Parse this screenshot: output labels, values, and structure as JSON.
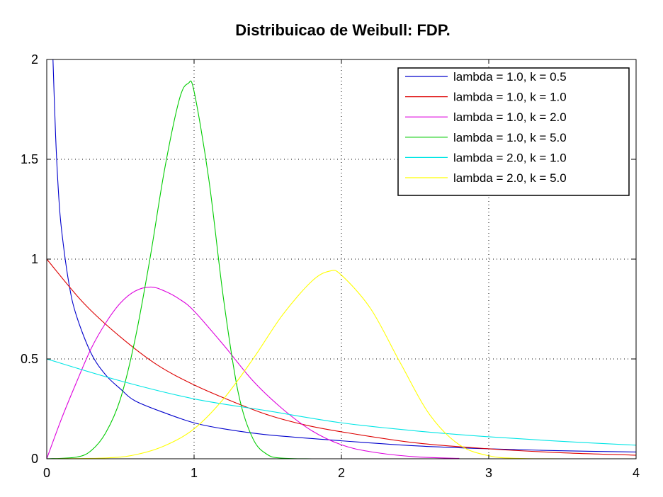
{
  "chart_data": {
    "type": "line",
    "title": "Distribuicao de Weibull: FDP.",
    "xlabel": "",
    "ylabel": "",
    "xlim": [
      0,
      4
    ],
    "ylim": [
      0,
      2
    ],
    "x_ticks": [
      0,
      1,
      2,
      3,
      4
    ],
    "y_ticks": [
      0,
      0.5,
      1,
      1.5,
      2
    ],
    "x_tick_labels": [
      "0",
      "1",
      "2",
      "3",
      "4"
    ],
    "y_tick_labels": [
      "0",
      "0.5",
      "1",
      "1.5",
      "2"
    ],
    "grid": true,
    "grid_style": "dotted",
    "legend_position": "top-right",
    "series": [
      {
        "name": "lambda = 1.0, k = 0.5",
        "color": "#0000cc",
        "x": [
          0.04,
          0.06,
          0.08,
          0.1,
          0.15,
          0.2,
          0.3,
          0.4,
          0.5,
          0.6,
          0.8,
          1.0,
          1.2,
          1.5,
          2.0,
          2.5,
          3.0,
          3.5,
          4.0
        ],
        "y": [
          2.05,
          1.62,
          1.33,
          1.15,
          0.88,
          0.72,
          0.53,
          0.42,
          0.35,
          0.29,
          0.23,
          0.18,
          0.15,
          0.12,
          0.09,
          0.065,
          0.05,
          0.04,
          0.034
        ]
      },
      {
        "name": "lambda = 1.0, k = 1.0",
        "color": "#dd0000",
        "x": [
          0,
          0.25,
          0.5,
          0.75,
          1.0,
          1.25,
          1.5,
          1.75,
          2.0,
          2.5,
          3.0,
          3.5,
          4.0
        ],
        "y": [
          1.0,
          0.78,
          0.61,
          0.47,
          0.37,
          0.29,
          0.22,
          0.17,
          0.135,
          0.08,
          0.05,
          0.03,
          0.018
        ]
      },
      {
        "name": "lambda = 1.0, k = 2.0",
        "color": "#dd00dd",
        "x": [
          0,
          0.1,
          0.2,
          0.3,
          0.4,
          0.5,
          0.6,
          0.707,
          0.8,
          0.9,
          1.0,
          1.2,
          1.4,
          1.6,
          1.8,
          2.0,
          2.2,
          2.5,
          2.8
        ],
        "y": [
          0,
          0.2,
          0.38,
          0.55,
          0.68,
          0.78,
          0.84,
          0.86,
          0.84,
          0.8,
          0.74,
          0.57,
          0.39,
          0.25,
          0.14,
          0.07,
          0.035,
          0.01,
          0.002
        ]
      },
      {
        "name": "lambda = 1.0, k = 5.0",
        "color": "#00cc00",
        "x": [
          0,
          0.2,
          0.3,
          0.4,
          0.5,
          0.6,
          0.7,
          0.8,
          0.9,
          0.96,
          1.0,
          1.1,
          1.2,
          1.3,
          1.4,
          1.5,
          1.6,
          1.8
        ],
        "y": [
          0,
          0.008,
          0.04,
          0.13,
          0.3,
          0.6,
          1.0,
          1.45,
          1.8,
          1.88,
          1.84,
          1.4,
          0.8,
          0.33,
          0.1,
          0.02,
          0.003,
          0
        ]
      },
      {
        "name": "lambda = 2.0, k = 1.0",
        "color": "#00e5e5",
        "x": [
          0,
          0.5,
          1.0,
          1.5,
          2.0,
          2.5,
          3.0,
          3.5,
          4.0
        ],
        "y": [
          0.5,
          0.39,
          0.3,
          0.24,
          0.18,
          0.14,
          0.11,
          0.087,
          0.068
        ]
      },
      {
        "name": "lambda = 2.0, k = 5.0",
        "color": "#ffff00",
        "x": [
          0,
          0.4,
          0.6,
          0.8,
          1.0,
          1.2,
          1.4,
          1.6,
          1.8,
          1.92,
          2.0,
          2.2,
          2.4,
          2.6,
          2.8,
          3.0,
          3.2,
          3.5,
          4.0
        ],
        "y": [
          0,
          0.004,
          0.02,
          0.065,
          0.15,
          0.3,
          0.5,
          0.72,
          0.89,
          0.94,
          0.92,
          0.75,
          0.48,
          0.22,
          0.07,
          0.015,
          0.002,
          0,
          0
        ]
      }
    ]
  }
}
